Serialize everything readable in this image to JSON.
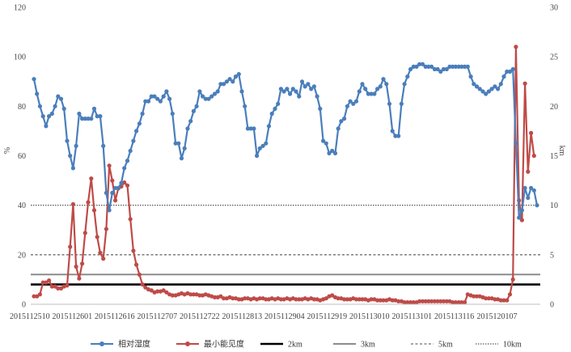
{
  "chart_data": {
    "type": "line",
    "y_left": {
      "label": "%",
      "min": 0,
      "max": 120,
      "step": 20,
      "ticks": [
        "0",
        "20",
        "40",
        "60",
        "80",
        "100",
        "120"
      ]
    },
    "y_right": {
      "label": "km",
      "min": 0,
      "max": 30,
      "step": 5,
      "ticks": [
        "0",
        "5",
        "10",
        "15",
        "20",
        "25",
        "30"
      ]
    },
    "x_tick_labels": [
      "2015112510",
      "2015112601",
      "2015112616",
      "2015112707",
      "2015112722",
      "2015112813",
      "2015112904",
      "2015112919",
      "2015113010",
      "2015113101",
      "2015113116",
      "2015120107"
    ],
    "legend_position": "bottom",
    "grid": false,
    "series": [
      {
        "name": "相对湿度",
        "axis": "left",
        "color": "#4a7ebb",
        "values": [
          91,
          85,
          80,
          76,
          72,
          76,
          77,
          80,
          84,
          83,
          79,
          66,
          60,
          55,
          64,
          77,
          75,
          75,
          75,
          75,
          79,
          76,
          76,
          64,
          45,
          38,
          45,
          47,
          47,
          49,
          55,
          58,
          62,
          66,
          70,
          73,
          77,
          82,
          82,
          84,
          84,
          83,
          82,
          84,
          86,
          83,
          77,
          65,
          65,
          59,
          63,
          71,
          74,
          78,
          80,
          86,
          84,
          83,
          83,
          84,
          85,
          86,
          89,
          89,
          90,
          91,
          90,
          92,
          93,
          86,
          80,
          71,
          71,
          71,
          60,
          63,
          64,
          65,
          72,
          77,
          79,
          81,
          87,
          86,
          87,
          85,
          87,
          86,
          84,
          90,
          88,
          89,
          87,
          88,
          84,
          79,
          66,
          65,
          61,
          62,
          61,
          71,
          74,
          75,
          80,
          82,
          81,
          82,
          86,
          89,
          87,
          85,
          85,
          85,
          87,
          88,
          91,
          89,
          81,
          70,
          68,
          68,
          81,
          89,
          92,
          95,
          96,
          96,
          97,
          97,
          96,
          96,
          96,
          95,
          95,
          94,
          95,
          95,
          96,
          96,
          96,
          96,
          96,
          96,
          96,
          92,
          89,
          88,
          87,
          86,
          85,
          86,
          87,
          88,
          87,
          89,
          92,
          94,
          94,
          95,
          65,
          35,
          38,
          47,
          43,
          47,
          46,
          40
        ],
        "marker": "circle"
      },
      {
        "name": "最小能见度",
        "axis": "right",
        "color": "#be4b48",
        "values": [
          0.8,
          0.8,
          1.0,
          2.2,
          2.2,
          2.4,
          1.8,
          1.8,
          1.6,
          1.6,
          1.8,
          1.9,
          5.8,
          10.1,
          3.8,
          2.6,
          4.1,
          7.2,
          10.3,
          12.7,
          9.5,
          6.8,
          5.2,
          4.6,
          7.6,
          14.0,
          12.5,
          10.5,
          11.7,
          11.9,
          12.3,
          12.0,
          8.6,
          5.4,
          4.0,
          3.0,
          2.0,
          1.7,
          1.5,
          1.4,
          1.2,
          1.3,
          1.3,
          1.4,
          1.2,
          1.0,
          0.9,
          0.9,
          1.0,
          1.1,
          1.0,
          1.1,
          1.0,
          1.0,
          1.0,
          0.9,
          0.9,
          1.0,
          0.9,
          0.8,
          0.7,
          0.7,
          0.8,
          0.6,
          0.6,
          0.7,
          0.6,
          0.6,
          0.5,
          0.5,
          0.6,
          0.6,
          0.5,
          0.6,
          0.5,
          0.6,
          0.6,
          0.5,
          0.5,
          0.6,
          0.5,
          0.6,
          0.5,
          0.5,
          0.6,
          0.5,
          0.6,
          0.5,
          0.5,
          0.5,
          0.6,
          0.5,
          0.6,
          0.5,
          0.5,
          0.4,
          0.5,
          0.6,
          0.8,
          0.9,
          0.7,
          0.6,
          0.6,
          0.5,
          0.5,
          0.5,
          0.6,
          0.5,
          0.5,
          0.5,
          0.5,
          0.4,
          0.5,
          0.5,
          0.4,
          0.4,
          0.4,
          0.4,
          0.5,
          0.4,
          0.4,
          0.3,
          0.3,
          0.2,
          0.2,
          0.2,
          0.2,
          0.2,
          0.3,
          0.3,
          0.3,
          0.3,
          0.3,
          0.3,
          0.3,
          0.3,
          0.3,
          0.3,
          0.3,
          0.2,
          0.2,
          0.2,
          0.2,
          0.2,
          1.0,
          0.9,
          0.8,
          0.8,
          0.8,
          0.7,
          0.6,
          0.6,
          0.6,
          0.5,
          0.5,
          0.4,
          0.4,
          0.4,
          1.0,
          2.5,
          26.0,
          10.5,
          8.5,
          22.3,
          13.4,
          17.3,
          15.0
        ]
      }
    ],
    "reference_lines": [
      {
        "name": "2km",
        "axis": "right",
        "value": 2,
        "color": "#000000",
        "style": "thick-solid"
      },
      {
        "name": "3km",
        "axis": "right",
        "value": 3,
        "color": "#8c8c8c",
        "style": "solid"
      },
      {
        "name": "5km",
        "axis": "right",
        "value": 5,
        "color": "#6e6e6e",
        "style": "dashed"
      },
      {
        "name": "10km",
        "axis": "right",
        "value": 10,
        "color": "#333333",
        "style": "dotted"
      }
    ]
  }
}
